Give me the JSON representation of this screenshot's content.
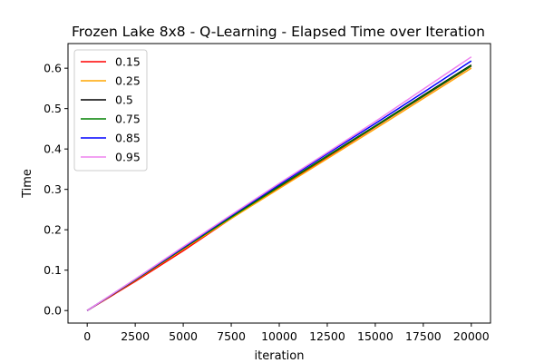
{
  "chart_data": {
    "type": "line",
    "title": "Frozen Lake 8x8 - Q-Learning - Elapsed Time over Iteration",
    "xlabel": "iteration",
    "ylabel": "Time",
    "xlim": [
      -1000,
      21000
    ],
    "ylim": [
      -0.031,
      0.661
    ],
    "grid": false,
    "legend_position": "top-left",
    "x_ticks": [
      0,
      2500,
      5000,
      7500,
      10000,
      12500,
      15000,
      17500,
      20000
    ],
    "x_tick_labels": [
      "0",
      "2500",
      "5000",
      "7500",
      "10000",
      "12500",
      "15000",
      "17500",
      "20000"
    ],
    "y_ticks": [
      0.0,
      0.1,
      0.2,
      0.3,
      0.4,
      0.5,
      0.6
    ],
    "y_tick_labels": [
      "0.0",
      "0.1",
      "0.2",
      "0.3",
      "0.4",
      "0.5",
      "0.6"
    ],
    "x": [
      0,
      2500,
      5000,
      7500,
      10000,
      12500,
      15000,
      17500,
      20000
    ],
    "series": [
      {
        "name": "0.15",
        "color": "#ff0000",
        "values": [
          0.0,
          0.072,
          0.148,
          0.228,
          0.305,
          0.38,
          0.455,
          0.53,
          0.605
        ]
      },
      {
        "name": "0.25",
        "color": "#ffa500",
        "values": [
          0.0,
          0.075,
          0.152,
          0.228,
          0.302,
          0.376,
          0.45,
          0.525,
          0.6
        ]
      },
      {
        "name": "0.5",
        "color": "#000000",
        "values": [
          0.0,
          0.076,
          0.154,
          0.232,
          0.308,
          0.383,
          0.457,
          0.533,
          0.608
        ]
      },
      {
        "name": "0.75",
        "color": "#008000",
        "values": [
          0.0,
          0.076,
          0.154,
          0.231,
          0.307,
          0.382,
          0.456,
          0.531,
          0.606
        ]
      },
      {
        "name": "0.85",
        "color": "#0000ff",
        "values": [
          0.0,
          0.077,
          0.156,
          0.235,
          0.312,
          0.388,
          0.463,
          0.54,
          0.618
        ]
      },
      {
        "name": "0.95",
        "color": "#ee82ee",
        "values": [
          0.0,
          0.078,
          0.158,
          0.237,
          0.315,
          0.391,
          0.468,
          0.548,
          0.628
        ]
      }
    ]
  }
}
